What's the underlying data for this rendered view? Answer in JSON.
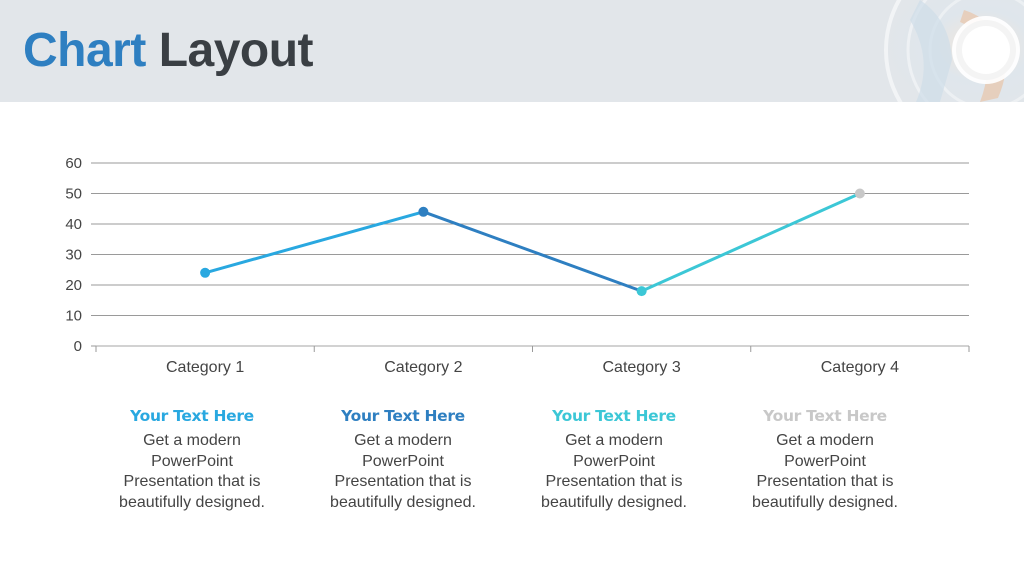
{
  "header": {
    "title_part1": "Chart",
    "title_part2": "Layout",
    "title_color1": "#2e7fc1",
    "title_color2": "#3a3f44",
    "background": "#e2e6ea"
  },
  "chart_data": {
    "type": "line",
    "categories": [
      "Category 1",
      "Category 2",
      "Category 3",
      "Category 4"
    ],
    "values": [
      24,
      44,
      18,
      50
    ],
    "ylim": [
      0,
      60
    ],
    "yticks": [
      0,
      10,
      20,
      30,
      40,
      50,
      60
    ],
    "grid": true,
    "segment_colors": [
      "#29a8e0",
      "#2e7fc1",
      "#3cc7d6"
    ],
    "point_colors": [
      "#29a8e0",
      "#2e7fc1",
      "#3cc7d6",
      "#c8c8c8"
    ]
  },
  "columns": [
    {
      "heading": "Your Text Here",
      "color": "#29a8e0",
      "lines": [
        "Get a modern",
        "PowerPoint",
        "Presentation that is",
        "beautifully designed."
      ]
    },
    {
      "heading": "Your Text Here",
      "color": "#2e7fc1",
      "lines": [
        "Get a modern",
        "PowerPoint",
        "Presentation that is",
        "beautifully designed."
      ]
    },
    {
      "heading": "Your Text Here",
      "color": "#3cc7d6",
      "lines": [
        "Get a modern",
        "PowerPoint",
        "Presentation that is",
        "beautifully designed."
      ]
    },
    {
      "heading": "Your Text Here",
      "color": "#c8c8c8",
      "lines": [
        "Get a modern",
        "PowerPoint",
        "Presentation that is",
        "beautifully designed."
      ]
    }
  ]
}
